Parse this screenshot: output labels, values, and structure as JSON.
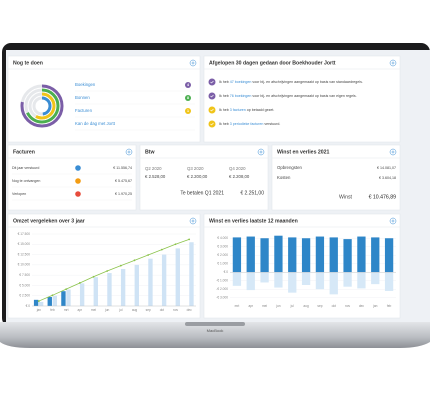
{
  "device": "MacBook",
  "todo": {
    "title": "Nog te doen",
    "items": [
      {
        "label": "Boekingen",
        "count": 4,
        "color": "#7b5ea7"
      },
      {
        "label": "Bonnen",
        "count": 8,
        "color": "#4caf50"
      },
      {
        "label": "Facturen",
        "count": 1,
        "color": "#f0c419"
      },
      {
        "label": "Kan de dag met Jortt",
        "color": "#3a8dd4"
      }
    ]
  },
  "activity": {
    "title": "Afgelopen 30 dagen gedaan door Boekhouder Jortt",
    "items": [
      {
        "pre": "Ik heb",
        "link": "47 boekingen",
        "post": "voor bij- en afschrijvingen aangemaakt op basis van standaardregels.",
        "color": "#7b5ea7"
      },
      {
        "pre": "Ik heb",
        "link": "76 boekingen",
        "post": "voor bij- en afschrijvingen aangemaakt op basis van eigen regels.",
        "color": "#7b5ea7"
      },
      {
        "pre": "Ik heb",
        "link": "3 facturen",
        "post": "op betaald gezet.",
        "color": "#f0c419"
      },
      {
        "pre": "Ik heb",
        "link": "3 periodieke facturen",
        "post": "verstuurd.",
        "color": "#f0c419"
      }
    ]
  },
  "invoices": {
    "title": "Facturen",
    "rows": [
      {
        "label": "Dit jaar verstuurd",
        "amount": "€ 11.556,74",
        "color": "#3a8dd4"
      },
      {
        "label": "Nog te ontvangen",
        "amount": "€ 5.475,67",
        "color": "#f39c12"
      },
      {
        "label": "Verlopen",
        "amount": "€ 1.970,25",
        "color": "#e74c3c"
      }
    ]
  },
  "vat": {
    "title": "Btw",
    "quarters": [
      {
        "label": "Q2 2020",
        "amount": "€ 2.528,00"
      },
      {
        "label": "Q3 2020",
        "amount": "€ 2.200,00"
      },
      {
        "label": "Q4 2020",
        "amount": "€ 2.208,00"
      }
    ],
    "due_label": "Te betalen Q1 2021",
    "due_amount": "€ 2.251,00"
  },
  "pnl": {
    "title": "Winst en verlies 2021",
    "rows": [
      {
        "label": "Opbrengsten",
        "amount": "€ 14.081,07"
      },
      {
        "label": "Kosten",
        "amount": "€ 3.604,18"
      }
    ],
    "total_label": "Winst",
    "total_amount": "€ 10.476,89"
  },
  "chart_data": [
    {
      "type": "bar",
      "title": "Omzet vergeleken over 3 jaar",
      "categories": [
        "jan",
        "feb",
        "mrt",
        "apr",
        "mei",
        "jun",
        "jul",
        "aug",
        "sep",
        "okt",
        "nov",
        "dec"
      ],
      "series": [
        {
          "color": "#2e86c8",
          "type": "bar",
          "values": [
            1500,
            2200,
            3600,
            null,
            null,
            null,
            null,
            null,
            null,
            null,
            null,
            null
          ]
        },
        {
          "color": "#cfe3f5",
          "type": "bar",
          "values": [
            1000,
            2500,
            4000,
            5500,
            7000,
            8000,
            9000,
            10000,
            11500,
            12500,
            14000,
            15500
          ]
        },
        {
          "color": "#8bc34a",
          "type": "line",
          "values": [
            1200,
            2600,
            4100,
            5600,
            7100,
            8500,
            9800,
            11100,
            12400,
            13700,
            15000,
            16200
          ]
        }
      ],
      "ylim": [
        0,
        17500
      ],
      "yticks": [
        {
          "value": 0,
          "label": "€ 0"
        },
        {
          "value": 2500,
          "label": "€ 2.500"
        },
        {
          "value": 5000,
          "label": "€ 5.000"
        },
        {
          "value": 7500,
          "label": "€ 7.500"
        },
        {
          "value": 10000,
          "label": "€ 10.000"
        },
        {
          "value": 12500,
          "label": "€ 12.500"
        },
        {
          "value": 15000,
          "label": "€ 15.000"
        },
        {
          "value": 17500,
          "label": "€ 17.500"
        }
      ],
      "grid": true
    },
    {
      "type": "bar",
      "title": "Winst en verlies laatste 12 maanden",
      "categories": [
        "mrt",
        "apr",
        "mei",
        "jun",
        "jul",
        "aug",
        "sep",
        "okt",
        "nov",
        "dec",
        "jan",
        "feb"
      ],
      "series": [
        {
          "color": "#2e86c8",
          "type": "bar",
          "values": [
            4100,
            4200,
            4000,
            4300,
            4100,
            4000,
            4200,
            4100,
            3900,
            4200,
            4100,
            4000
          ]
        },
        {
          "color": "#d6e8f7",
          "type": "bar",
          "values": [
            -1600,
            -2100,
            -1200,
            -1800,
            -2400,
            -1500,
            -2000,
            -2600,
            -1700,
            -1900,
            -1400,
            -2200
          ]
        }
      ],
      "ylim": [
        -3500,
        4500
      ],
      "yticks": [
        {
          "value": -3000,
          "label": "-€ 3.000"
        },
        {
          "value": -2000,
          "label": "-€ 2.000"
        },
        {
          "value": -1000,
          "label": "-€ 1.000"
        },
        {
          "value": 0,
          "label": "€ 0"
        },
        {
          "value": 1000,
          "label": "€ 1.000"
        },
        {
          "value": 2000,
          "label": "€ 2.000"
        },
        {
          "value": 3000,
          "label": "€ 3.000"
        },
        {
          "value": 4000,
          "label": "€ 4.000"
        }
      ],
      "grid": true
    }
  ]
}
